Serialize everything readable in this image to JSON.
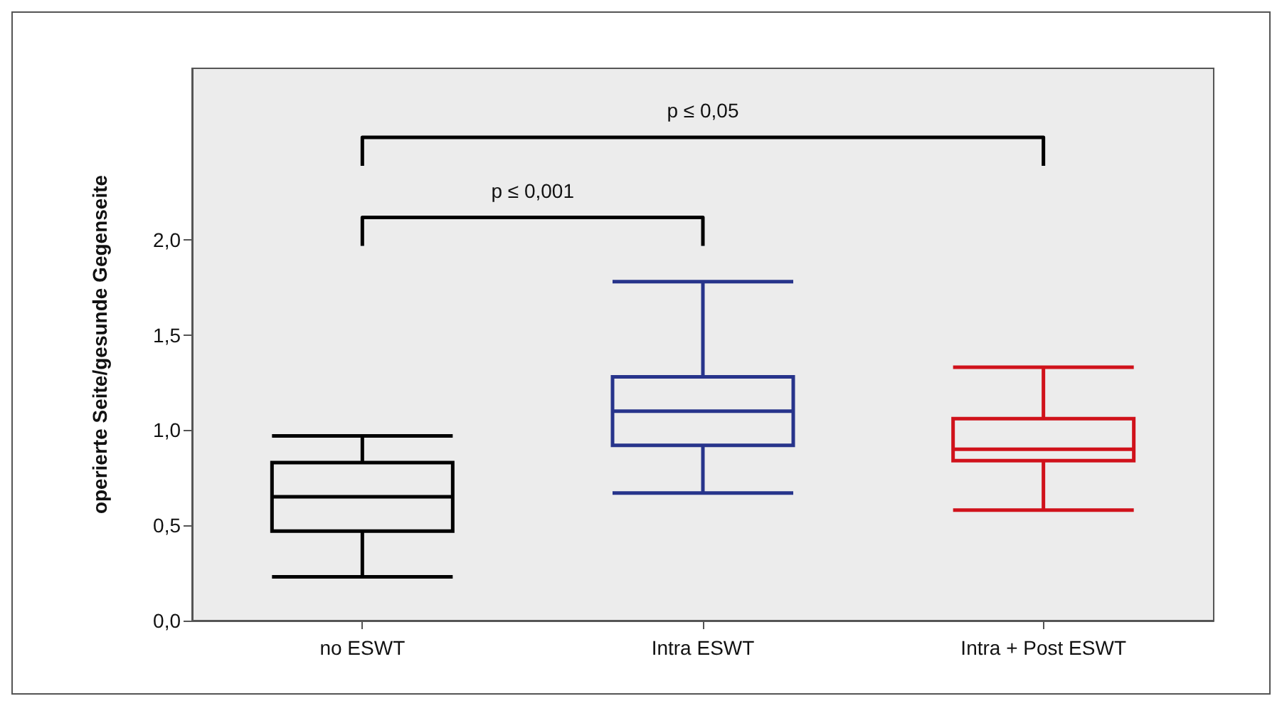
{
  "chart_data": {
    "type": "box",
    "ylabel": "operierte Seite/gesunde Gegenseite",
    "categories": [
      "no ESWT",
      "Intra ESWT",
      "Intra + Post ESWT"
    ],
    "colors": [
      "#000000",
      "#27348b",
      "#d0121b"
    ],
    "boxes": [
      {
        "low": 0.23,
        "q1": 0.47,
        "median": 0.65,
        "q3": 0.83,
        "high": 0.97
      },
      {
        "low": 0.67,
        "q1": 0.92,
        "median": 1.1,
        "q3": 1.28,
        "high": 1.78
      },
      {
        "low": 0.58,
        "q1": 0.84,
        "median": 0.9,
        "q3": 1.06,
        "high": 1.33
      }
    ],
    "ylim": [
      0,
      2.9
    ],
    "yticks": [
      {
        "value": 0,
        "label": "0,0"
      },
      {
        "value": 0.5,
        "label": "0,5"
      },
      {
        "value": 1,
        "label": "1,0"
      },
      {
        "value": 1.5,
        "label": "1,5"
      },
      {
        "value": 2,
        "label": "2,0"
      }
    ],
    "grid": false,
    "annotations": [
      "p ≤ 0,001",
      "p ≤ 0,05"
    ]
  }
}
